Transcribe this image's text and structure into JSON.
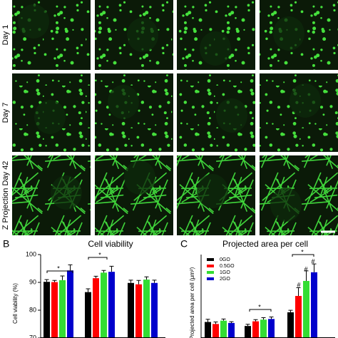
{
  "figure": {
    "row_labels": [
      "Day 1",
      "Day 7",
      "Z Projection Day 42"
    ]
  },
  "chart_data": [
    {
      "type": "bar",
      "panel": "B",
      "title": "Cell viability",
      "y_label": "Cell viability (%)",
      "categories": [
        null,
        null,
        null
      ],
      "series": [
        {
          "color": "#000000",
          "values": [
            90.2,
            86.5,
            89.8
          ],
          "errors": [
            0.8,
            1.2,
            1.0
          ]
        },
        {
          "color": "#ff0000",
          "values": [
            90.1,
            91.5,
            89.3
          ],
          "errors": [
            0.6,
            0.7,
            1.4
          ]
        },
        {
          "color": "#33dd33",
          "values": [
            90.8,
            93.5,
            91.0
          ],
          "errors": [
            1.5,
            0.8,
            1.0
          ]
        },
        {
          "color": "#0000cc",
          "values": [
            94.3,
            93.8,
            89.8
          ],
          "errors": [
            2.0,
            2.0,
            1.0
          ]
        }
      ],
      "ylim": [
        70,
        100
      ],
      "yticks": [
        70,
        80,
        90,
        100
      ],
      "annotations": [
        "*",
        "*"
      ]
    },
    {
      "type": "bar",
      "panel": "C",
      "title": "Projected area per cell",
      "y_label": "Projected area per cell (μm²)",
      "categories": [
        null,
        null,
        null
      ],
      "series": [
        {
          "name": "0GO",
          "color": "#000000",
          "values": [
            48,
            36,
            77
          ],
          "errors": [
            8,
            5,
            6
          ]
        },
        {
          "name": "0.5GO",
          "color": "#ff0000",
          "values": [
            42,
            50,
            126
          ],
          "errors": [
            6,
            5,
            25
          ]
        },
        {
          "name": "1GO",
          "color": "#33dd33",
          "values": [
            52,
            55,
            171
          ],
          "errors": [
            5,
            6,
            30
          ]
        },
        {
          "name": "2GO",
          "color": "#0000cc",
          "values": [
            45,
            57,
            197
          ],
          "errors": [
            4,
            6,
            25
          ]
        }
      ],
      "ylim": [
        0,
        250
      ],
      "annotations": [
        "*",
        "*",
        "#",
        "#",
        "#"
      ]
    }
  ]
}
